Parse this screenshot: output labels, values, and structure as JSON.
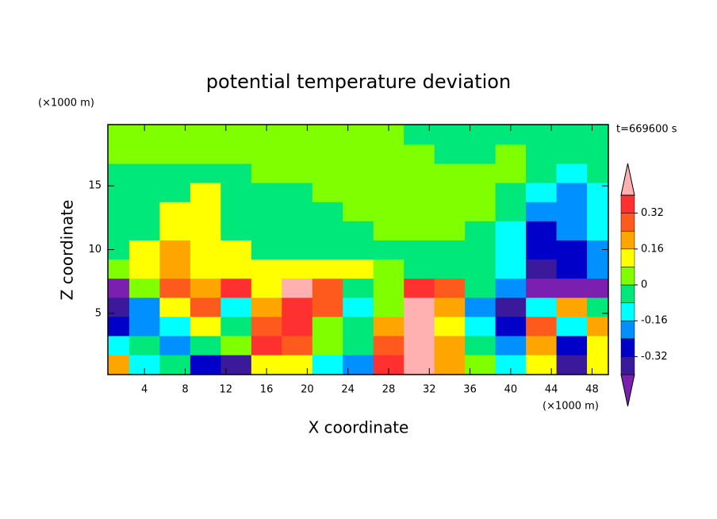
{
  "chart_data": {
    "type": "contour",
    "title": "potential temperature deviation",
    "x_label": "X coordinate",
    "y_label": "Z coordinate",
    "x_unit": "(×1000 m)",
    "y_unit": "(×1000 m)",
    "time_label": "t=669600 s",
    "xlim": [
      0.4,
      49.6
    ],
    "ylim": [
      0.2,
      19.8
    ],
    "xticks": [
      4,
      8,
      12,
      16,
      20,
      24,
      28,
      32,
      36,
      40,
      44,
      48
    ],
    "yticks": [
      5,
      10,
      15
    ],
    "x": [
      1,
      4,
      7,
      10,
      13,
      16,
      19,
      22,
      25,
      28,
      31,
      34,
      37,
      40,
      43,
      46,
      49
    ],
    "y": [
      1,
      2.5,
      4,
      5.5,
      7,
      8.5,
      10,
      11.5,
      13,
      14.5,
      16,
      17.5,
      19
    ],
    "z": [
      [
        0.2,
        -0.12,
        -0.04,
        -0.28,
        -0.36,
        0.12,
        0.12,
        -0.12,
        -0.2,
        0.36,
        0.44,
        0.2,
        0.04,
        -0.12,
        0.12,
        -0.36,
        0.12
      ],
      [
        -0.12,
        -0.04,
        -0.2,
        -0.04,
        0.04,
        0.36,
        0.28,
        0.04,
        -0.04,
        0.28,
        0.44,
        0.2,
        -0.04,
        -0.2,
        0.2,
        -0.28,
        0.12
      ],
      [
        -0.28,
        -0.2,
        -0.12,
        0.12,
        -0.04,
        0.28,
        0.36,
        0.04,
        -0.04,
        0.2,
        0.44,
        0.12,
        -0.12,
        -0.28,
        0.28,
        -0.12,
        0.2
      ],
      [
        -0.36,
        -0.2,
        0.12,
        0.28,
        -0.12,
        0.2,
        0.36,
        0.28,
        -0.12,
        0.04,
        0.44,
        0.2,
        -0.2,
        -0.36,
        -0.12,
        0.2,
        -0.04
      ],
      [
        -0.44,
        0.04,
        0.28,
        0.2,
        0.36,
        0.12,
        0.44,
        0.28,
        -0.04,
        0.04,
        0.36,
        0.28,
        -0.04,
        -0.2,
        -0.44,
        -0.44,
        -0.44
      ],
      [
        0.04,
        0.12,
        0.2,
        0.12,
        0.12,
        0.12,
        0.12,
        0.12,
        0.12,
        0.04,
        -0.04,
        -0.04,
        -0.04,
        -0.12,
        -0.36,
        -0.28,
        -0.2
      ],
      [
        -0.04,
        0.12,
        0.2,
        0.12,
        0.12,
        -0.04,
        -0.04,
        -0.04,
        -0.04,
        -0.04,
        -0.04,
        -0.04,
        -0.04,
        -0.12,
        -0.28,
        -0.28,
        -0.2
      ],
      [
        -0.04,
        -0.04,
        0.12,
        0.12,
        -0.04,
        -0.04,
        -0.04,
        -0.04,
        -0.04,
        0.04,
        0.04,
        0.04,
        -0.04,
        -0.12,
        -0.28,
        -0.2,
        -0.12
      ],
      [
        -0.04,
        -0.04,
        0.12,
        0.12,
        -0.04,
        -0.04,
        -0.04,
        -0.04,
        0.04,
        0.04,
        0.04,
        0.04,
        0.04,
        -0.04,
        -0.2,
        -0.2,
        -0.12
      ],
      [
        -0.04,
        -0.04,
        -0.04,
        0.12,
        -0.04,
        -0.04,
        -0.04,
        0.04,
        0.04,
        0.04,
        0.04,
        0.04,
        0.04,
        -0.04,
        -0.12,
        -0.2,
        -0.12
      ],
      [
        -0.04,
        -0.04,
        -0.04,
        -0.04,
        -0.04,
        0.04,
        0.04,
        0.04,
        0.04,
        0.04,
        0.04,
        0.04,
        0.04,
        0.04,
        -0.04,
        -0.12,
        -0.04
      ],
      [
        0.04,
        0.04,
        0.04,
        0.04,
        0.04,
        0.04,
        0.04,
        0.04,
        0.04,
        0.04,
        0.04,
        -0.04,
        -0.04,
        0.04,
        -0.04,
        -0.04,
        -0.04
      ],
      [
        0.04,
        0.04,
        0.04,
        0.04,
        0.04,
        0.04,
        0.04,
        0.04,
        0.04,
        0.04,
        -0.04,
        -0.04,
        -0.04,
        -0.04,
        -0.04,
        -0.04,
        -0.04
      ]
    ],
    "levels": [
      -0.4,
      -0.32,
      -0.24,
      -0.16,
      -0.08,
      0,
      0.08,
      0.16,
      0.24,
      0.32,
      0.4
    ],
    "colors": [
      "#7b1fb0",
      "#3a1a9a",
      "#0000c8",
      "#0090ff",
      "#00ffff",
      "#00e87a",
      "#80ff00",
      "#ffff00",
      "#ffa500",
      "#ff5a1e",
      "#ff3030",
      "#ffb0b0"
    ],
    "colorbar_ticks": [
      -0.32,
      -0.16,
      0,
      0.16,
      0.32
    ]
  }
}
